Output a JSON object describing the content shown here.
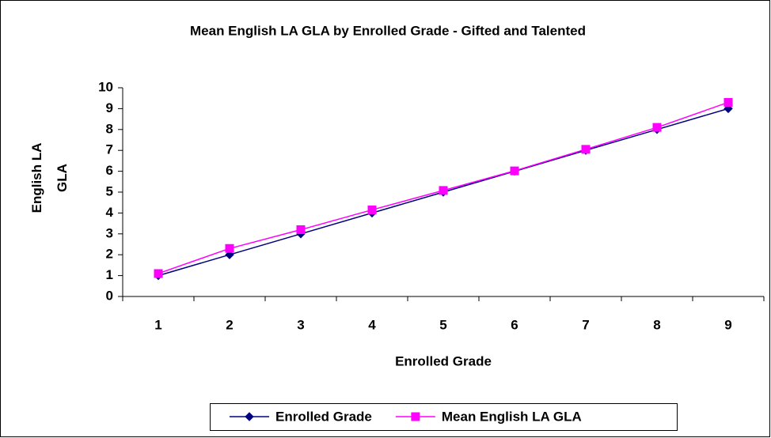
{
  "chart_data": {
    "type": "line",
    "title": "Mean English LA GLA by Enrolled Grade - Gifted and Talented",
    "xlabel": "Enrolled Grade",
    "ylabel": "English LA GLA",
    "categories": [
      "1",
      "2",
      "3",
      "4",
      "5",
      "6",
      "7",
      "8",
      "9"
    ],
    "series": [
      {
        "name": "Enrolled Grade",
        "color": "#000080",
        "marker": "diamond",
        "values": [
          1,
          2,
          3,
          4,
          5,
          6,
          7,
          8,
          9
        ]
      },
      {
        "name": "Mean English LA GLA",
        "color": "#ff00ff",
        "marker": "square",
        "values": [
          1.1,
          2.3,
          3.2,
          4.15,
          5.08,
          6.02,
          7.05,
          8.1,
          9.3
        ]
      }
    ],
    "ylim": [
      0,
      10
    ],
    "yticks": [
      0,
      1,
      2,
      3,
      4,
      5,
      6,
      7,
      8,
      9,
      10
    ],
    "grid": false,
    "legend": "bottom"
  }
}
